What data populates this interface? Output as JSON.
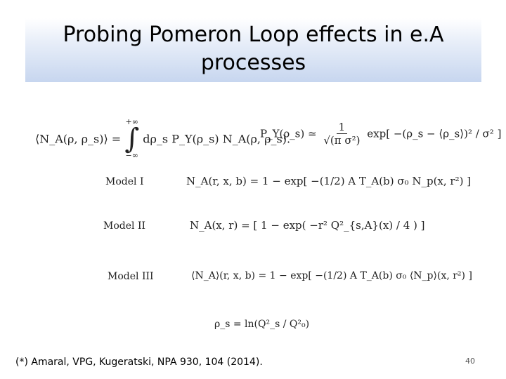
{
  "slide": {
    "title": "Probing Pomeron Loop effects in e.A processes",
    "equations": {
      "eq1_lhs": "⟨N_A(ρ, ρ_s)⟩ =",
      "eq1_upper": "+∞",
      "eq1_lower": "−∞",
      "eq1_rhs": "dρ_s P_Y(ρ_s) N_A(ρ, ρ_s).",
      "eq2_lhs": "P_Y(ρ_s) ≃",
      "eq2_num": "1",
      "eq2_den": "√(π σ²)",
      "eq2_exp": "exp[ −(ρ_s − ⟨ρ_s⟩)² / σ² ]",
      "model1": "N_A(r, x, b) = 1 − exp[ −(1/2) A T_A(b) σ₀ N_p(x, r²) ]",
      "model2": "N_A(x, r) = [ 1 − exp( −r² Q²_{s,A}(x) / 4 ) ]",
      "model3": "⟨N_A⟩(r, x, b) = 1 − exp[ −(1/2) A T_A(b) σ₀ ⟨N_p⟩(x, r²) ]",
      "rho_def": "ρ_s = ln(Q²_s / Q²₀)"
    },
    "model_labels": {
      "m1": "Model I",
      "m2": "Model II",
      "m3": "Model III"
    },
    "footnote": "(*) Amaral, VPG, Kugeratski, NPA 930,  104 (2014).",
    "page_number": "40"
  }
}
